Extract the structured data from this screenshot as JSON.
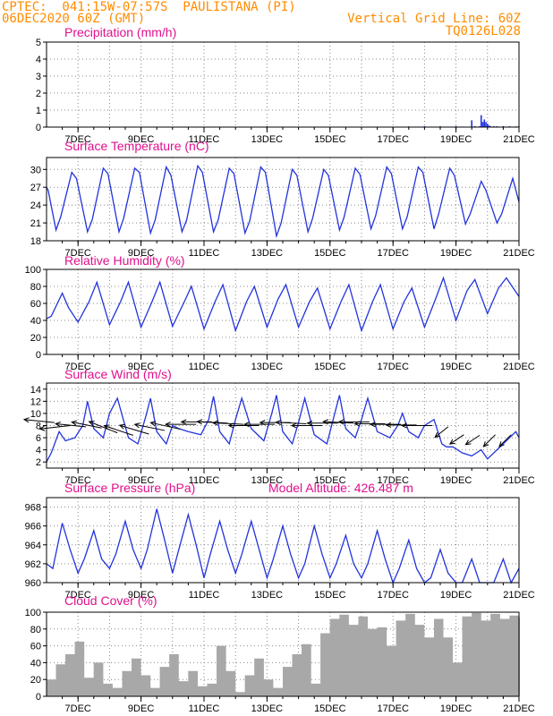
{
  "header": {
    "line1": "CPTEC:  041:15W-07:57S  PAULISTANA (PI)",
    "line2": "06DEC2020 60Z (GMT)",
    "grid_note": "Vertical Grid Line: 60Z",
    "code": "TQ0126L028"
  },
  "colors": {
    "header": "#ff8c00",
    "title": "#e0108c",
    "line": "#2233dd",
    "bar": "#a8a8a8",
    "arrow": "#000000"
  },
  "x_axis": {
    "start": "06DEC2020 00Z",
    "end": "21DEC2020 00Z",
    "tick_labels": [
      "7DEC",
      "9DEC",
      "11DEC",
      "13DEC",
      "15DEC",
      "17DEC",
      "19DEC",
      "21DEC"
    ],
    "tick_days": [
      7,
      9,
      11,
      13,
      15,
      17,
      19,
      21
    ]
  },
  "chart_data": [
    {
      "type": "bar",
      "id": "precip",
      "title": "Precipitation (mm/h)",
      "ylim": [
        0,
        5
      ],
      "yticks": [
        0,
        1,
        2,
        3,
        4,
        5
      ],
      "x_days": [
        6.0,
        10.0,
        13.0,
        14.0,
        16.0,
        17.5,
        18.0,
        18.5,
        19.0,
        19.2,
        19.5,
        19.6,
        19.75,
        19.8,
        19.85,
        19.9,
        19.95,
        20.0,
        20.05,
        20.1,
        20.2,
        20.3,
        20.5,
        20.7,
        20.9,
        21.0
      ],
      "values": [
        0.05,
        0.0,
        0.05,
        0.03,
        0.0,
        0.04,
        0.05,
        0.05,
        0.06,
        0.03,
        0.4,
        0.06,
        0.05,
        0.7,
        0.3,
        0.45,
        0.3,
        0.2,
        0.1,
        0.05,
        0.05,
        0.05,
        0.06,
        0.05,
        0.04,
        0.05
      ]
    },
    {
      "type": "line",
      "id": "temp",
      "title": "Surface Temperature (nC)",
      "ylim": [
        18,
        32
      ],
      "yticks": [
        18,
        21,
        24,
        27,
        30
      ],
      "x_days": [
        6.0,
        6.05,
        6.3,
        6.45,
        6.8,
        6.95,
        7.3,
        7.45,
        7.8,
        7.95,
        8.3,
        8.45,
        8.8,
        8.95,
        9.3,
        9.45,
        9.8,
        9.95,
        10.3,
        10.45,
        10.8,
        10.95,
        11.3,
        11.45,
        11.8,
        11.95,
        12.3,
        12.45,
        12.8,
        12.95,
        13.3,
        13.45,
        13.8,
        13.95,
        14.3,
        14.45,
        14.8,
        14.95,
        15.3,
        15.45,
        15.8,
        15.95,
        16.3,
        16.45,
        16.8,
        16.95,
        17.3,
        17.45,
        17.8,
        17.95,
        18.3,
        18.45,
        18.8,
        18.95,
        19.3,
        19.45,
        19.8,
        19.95,
        20.3,
        20.45,
        20.8,
        21.0
      ],
      "values": [
        27.0,
        26.5,
        19.8,
        22.0,
        29.5,
        28.5,
        19.5,
        21.5,
        30.2,
        29.3,
        19.5,
        21.8,
        30.2,
        29.5,
        19.3,
        21.5,
        30.4,
        29.0,
        19.5,
        21.5,
        30.6,
        29.5,
        19.5,
        21.5,
        30.2,
        29.3,
        19.3,
        21.3,
        30.4,
        29.5,
        18.8,
        21.0,
        30.0,
        29.0,
        19.5,
        21.8,
        30.0,
        29.0,
        19.8,
        22.0,
        30.2,
        29.2,
        20.0,
        22.2,
        30.4,
        29.3,
        20.0,
        22.0,
        30.4,
        29.5,
        20.0,
        22.5,
        30.2,
        29.0,
        20.8,
        22.5,
        28.0,
        26.5,
        21.0,
        22.5,
        28.5,
        24.5
      ]
    },
    {
      "type": "line",
      "id": "rh",
      "title": "Relative Humidity (%)",
      "ylim": [
        0,
        100
      ],
      "yticks": [
        0,
        20,
        40,
        60,
        80,
        100
      ],
      "x_days": [
        6.0,
        6.15,
        6.5,
        6.7,
        7.0,
        7.35,
        7.6,
        8.0,
        8.35,
        8.6,
        9.0,
        9.35,
        9.6,
        10.0,
        10.35,
        10.6,
        11.0,
        11.35,
        11.6,
        12.0,
        12.35,
        12.6,
        13.0,
        13.35,
        13.6,
        14.0,
        14.35,
        14.6,
        15.0,
        15.35,
        15.6,
        16.0,
        16.35,
        16.6,
        17.0,
        17.35,
        17.6,
        18.0,
        18.35,
        18.6,
        19.0,
        19.35,
        19.6,
        20.0,
        20.35,
        20.6,
        21.0
      ],
      "values": [
        42,
        45,
        72,
        55,
        38,
        62,
        85,
        35,
        62,
        85,
        32,
        62,
        85,
        33,
        60,
        80,
        30,
        62,
        82,
        28,
        62,
        80,
        32,
        65,
        82,
        32,
        62,
        78,
        30,
        62,
        82,
        28,
        62,
        82,
        30,
        62,
        78,
        32,
        65,
        90,
        40,
        75,
        88,
        48,
        78,
        90,
        68
      ]
    },
    {
      "type": "line",
      "id": "wind",
      "title": "Surface Wind (m/s)",
      "ylim": [
        1,
        15
      ],
      "yticks": [
        2,
        4,
        6,
        8,
        10,
        12,
        14
      ],
      "x_days": [
        6.0,
        6.15,
        6.4,
        6.6,
        6.9,
        7.15,
        7.3,
        7.5,
        7.8,
        8.0,
        8.25,
        8.6,
        8.9,
        9.15,
        9.3,
        9.5,
        9.8,
        10.0,
        10.2,
        10.5,
        10.9,
        11.15,
        11.3,
        11.5,
        11.8,
        12.0,
        12.2,
        12.5,
        12.9,
        13.15,
        13.3,
        13.5,
        13.8,
        14.0,
        14.2,
        14.5,
        14.9,
        15.15,
        15.3,
        15.5,
        15.8,
        16.0,
        16.2,
        16.5,
        16.9,
        17.15,
        17.3,
        17.5,
        17.8,
        18.0,
        18.3,
        18.55,
        18.7,
        18.9,
        19.2,
        19.5,
        19.8,
        20.0,
        20.3,
        20.6,
        20.9,
        21.0
      ],
      "values": [
        2,
        3.5,
        7,
        5.5,
        6,
        8,
        12,
        7.5,
        6,
        10,
        12.5,
        6,
        5,
        9.5,
        12.5,
        7,
        5,
        8,
        7.5,
        7,
        6.5,
        9,
        12.8,
        7,
        5,
        9,
        12.5,
        7.5,
        5.5,
        10,
        13,
        7,
        5,
        8.5,
        12.5,
        6.5,
        5,
        10,
        13,
        7.5,
        6,
        9,
        12.5,
        7,
        6,
        8,
        10,
        7,
        6,
        8,
        9,
        5,
        4.5,
        4.5,
        3.5,
        3,
        4,
        2.5,
        4,
        5.5,
        7,
        6
      ]
    },
    {
      "type": "line",
      "id": "pres",
      "title": "Surface Pressure (hPa)",
      "annotation": "Model Altitude: 426.487 m",
      "ylim": [
        960,
        969
      ],
      "yticks": [
        960,
        962,
        964,
        966,
        968
      ],
      "x_days": [
        6.0,
        6.2,
        6.5,
        6.75,
        7.0,
        7.2,
        7.5,
        7.75,
        8.0,
        8.2,
        8.5,
        8.75,
        9.0,
        9.2,
        9.5,
        9.75,
        10.0,
        10.2,
        10.5,
        10.75,
        11.0,
        11.2,
        11.5,
        11.75,
        12.0,
        12.2,
        12.5,
        12.75,
        13.0,
        13.2,
        13.5,
        13.75,
        14.0,
        14.2,
        14.5,
        14.75,
        15.0,
        15.2,
        15.5,
        15.75,
        16.0,
        16.2,
        16.5,
        16.75,
        17.0,
        17.2,
        17.5,
        17.75,
        18.0,
        18.2,
        18.5,
        18.75,
        19.0,
        19.2,
        19.5,
        19.75,
        20.0,
        20.2,
        20.5,
        20.75,
        21.0
      ],
      "values": [
        962,
        961.5,
        966.3,
        963.5,
        961,
        962.5,
        965.5,
        962.5,
        961.5,
        963,
        966.5,
        963.5,
        961.5,
        963.5,
        967.8,
        964.5,
        961,
        963.5,
        967.2,
        964,
        960.5,
        963,
        966.5,
        963.5,
        961,
        963,
        966.5,
        963.5,
        960.5,
        962.5,
        966,
        963,
        960.5,
        962,
        966,
        963,
        960.5,
        962,
        965,
        962,
        960.5,
        962,
        965.5,
        962.5,
        960,
        961.5,
        964.5,
        961.5,
        959.5,
        960.5,
        963.5,
        961,
        959.5,
        960,
        962.5,
        960,
        959,
        959.5,
        962.5,
        960,
        961.5
      ]
    },
    {
      "type": "bar",
      "id": "cloud",
      "title": "Cloud Cover (%)",
      "ylim": [
        0,
        100
      ],
      "yticks": [
        0,
        20,
        40,
        60,
        80,
        100
      ],
      "x_days": [
        6.0,
        6.3,
        6.6,
        6.9,
        7.2,
        7.5,
        7.8,
        8.1,
        8.4,
        8.7,
        9.0,
        9.3,
        9.6,
        9.9,
        10.2,
        10.5,
        10.8,
        11.1,
        11.4,
        11.7,
        12.0,
        12.3,
        12.6,
        12.9,
        13.2,
        13.5,
        13.8,
        14.1,
        14.4,
        14.7,
        15.0,
        15.3,
        15.6,
        15.9,
        16.2,
        16.5,
        16.8,
        17.1,
        17.4,
        17.7,
        18.0,
        18.3,
        18.6,
        18.9,
        19.2,
        19.5,
        19.8,
        20.1,
        20.4,
        20.7,
        21.0
      ],
      "values": [
        20,
        38,
        50,
        65,
        22,
        40,
        15,
        10,
        30,
        45,
        25,
        10,
        35,
        50,
        18,
        30,
        12,
        15,
        60,
        30,
        5,
        25,
        45,
        20,
        10,
        35,
        50,
        62,
        15,
        75,
        92,
        97,
        85,
        95,
        80,
        82,
        60,
        90,
        98,
        85,
        70,
        92,
        70,
        40,
        95,
        99,
        90,
        98,
        92,
        96,
        94
      ]
    },
    {
      "type": "vector",
      "id": "wind_arrows",
      "x_days": [
        6.25,
        6.75,
        7.25,
        7.75,
        8.25,
        8.75,
        9.25,
        9.75,
        10.25,
        10.75,
        11.25,
        11.75,
        12.25,
        12.75,
        13.25,
        13.75,
        14.25,
        14.75,
        15.25,
        15.75,
        16.25,
        16.75,
        17.25,
        17.75,
        18.25,
        18.75,
        19.25,
        19.75,
        20.25,
        20.75
      ],
      "y_values": [
        8.5,
        8,
        7.8,
        7.6,
        6.8,
        6.4,
        6.6,
        7.2,
        7.4,
        8.2,
        8.6,
        8.4,
        8.2,
        8,
        8.2,
        8.5,
        8.3,
        8,
        8.4,
        8.4,
        8.6,
        8.3,
        8.2,
        8.1,
        8,
        7.8,
        6.5,
        6.4,
        6.5,
        6.5
      ],
      "u": [
        -1.0,
        -0.9,
        -1.0,
        -1.0,
        -1.0,
        -0.9,
        -1.0,
        -1.0,
        -0.9,
        -1.0,
        -1.0,
        -1.0,
        -1.0,
        -1.0,
        -1.0,
        -1.0,
        -1.0,
        -1.0,
        -1.0,
        -1.0,
        -1.0,
        -1.0,
        -1.0,
        -1.0,
        -1.0,
        -0.5,
        -0.6,
        -0.6,
        -0.4,
        -0.4
      ],
      "v": [
        0.1,
        -0.1,
        0.1,
        0.2,
        0.4,
        0.3,
        0.3,
        0.2,
        0.2,
        0.0,
        0.0,
        0.05,
        0.05,
        0.0,
        0.0,
        0.0,
        0.05,
        0.0,
        0.0,
        0.05,
        0.0,
        0.0,
        0.0,
        0.0,
        0.0,
        -0.4,
        -0.4,
        -0.4,
        -0.4,
        -0.4
      ]
    }
  ]
}
